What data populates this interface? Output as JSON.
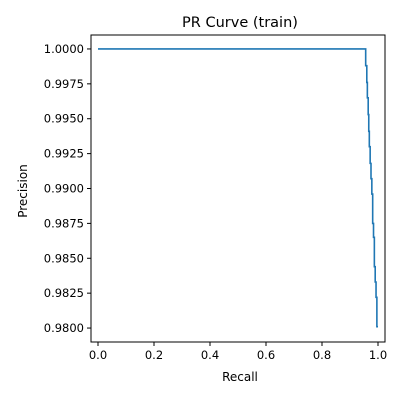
{
  "chart_data": {
    "type": "line",
    "title": "PR Curve (train)",
    "xlabel": "Recall",
    "ylabel": "Precision",
    "xlim": [
      -0.025,
      1.025
    ],
    "ylim": [
      0.979,
      1.001
    ],
    "xticks": [
      0.0,
      0.2,
      0.4,
      0.6,
      0.8,
      1.0
    ],
    "xtick_labels": [
      "0.0",
      "0.2",
      "0.4",
      "0.6",
      "0.8",
      "1.0"
    ],
    "yticks": [
      0.98,
      0.9825,
      0.985,
      0.9875,
      0.99,
      0.9925,
      0.995,
      0.9975,
      1.0
    ],
    "ytick_labels": [
      "0.9800",
      "0.9825",
      "0.9850",
      "0.9875",
      "0.9900",
      "0.9925",
      "0.9950",
      "0.9975",
      "1.0000"
    ],
    "grid": false,
    "legend": "none",
    "line_color": "#1f77b4",
    "series": [
      {
        "x": [
          0.0,
          0.956,
          0.956,
          0.96,
          0.96,
          0.962,
          0.962,
          0.965,
          0.965,
          0.967,
          0.967,
          0.969,
          0.969,
          0.972,
          0.972,
          0.975,
          0.975,
          0.978,
          0.978,
          0.981,
          0.981,
          0.984,
          0.984,
          0.987,
          0.987,
          0.99,
          0.99,
          0.993,
          0.993,
          0.996,
          0.996,
          1.0
        ],
        "y": [
          1.0,
          1.0,
          0.9988,
          0.9988,
          0.9976,
          0.9976,
          0.9965,
          0.9965,
          0.9953,
          0.9953,
          0.9941,
          0.9941,
          0.993,
          0.993,
          0.9918,
          0.9918,
          0.9907,
          0.9907,
          0.9896,
          0.9896,
          0.9875,
          0.9875,
          0.9865,
          0.9865,
          0.9844,
          0.9844,
          0.9833,
          0.9833,
          0.9822,
          0.9822,
          0.9801,
          0.9801
        ]
      }
    ]
  }
}
